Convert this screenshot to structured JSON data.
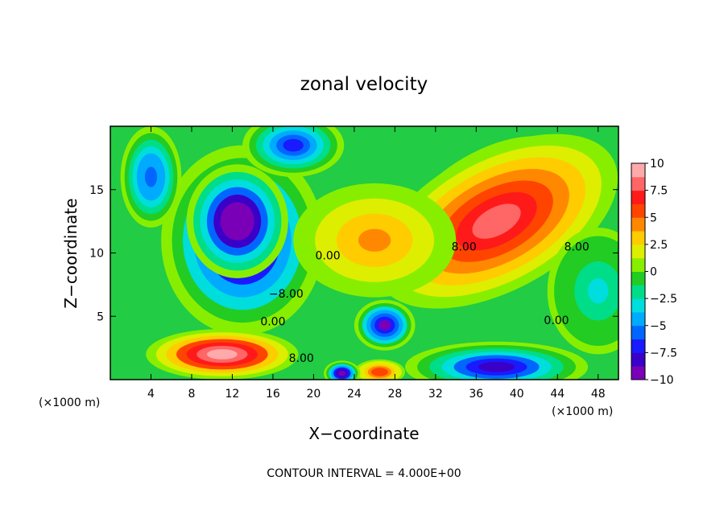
{
  "chart_data": {
    "type": "heatmap",
    "title": "zonal velocity",
    "xlabel": "X−coordinate",
    "ylabel": "Z−coordinate",
    "x_units_left": "(×1000 m)",
    "x_units_right": "(×1000 m)",
    "footer": "CONTOUR INTERVAL = 4.000E+00",
    "xlim": [
      0,
      50
    ],
    "ylim": [
      0,
      20
    ],
    "x_ticks": [
      4,
      8,
      12,
      16,
      20,
      24,
      28,
      32,
      36,
      40,
      44,
      48
    ],
    "x_tick_labels": [
      "4",
      "8",
      "12",
      "16",
      "20",
      "24",
      "28",
      "32",
      "36",
      "40",
      "44",
      "48"
    ],
    "y_ticks": [
      5,
      10,
      15
    ],
    "y_tick_labels": [
      "5",
      "10",
      "15"
    ],
    "colorbar": {
      "range": [
        -10,
        10
      ],
      "ticks": [
        10,
        7.5,
        5,
        2.5,
        0,
        -2.5,
        -5,
        -7.5,
        -10
      ],
      "tick_labels": [
        "10",
        "7.5",
        "5",
        "2.5",
        "0",
        "−2.5",
        "−5",
        "−7.5",
        "−10"
      ],
      "colors": [
        "#7a00b8",
        "#3a00c8",
        "#1a1aff",
        "#0066ff",
        "#00aaff",
        "#00dddd",
        "#00dd88",
        "#22cc22",
        "#88ee00",
        "#ddee00",
        "#ffcc00",
        "#ff8800",
        "#ff4400",
        "#ff1a1a",
        "#ff6666",
        "#ffaaaa"
      ]
    },
    "contour_labels": [
      {
        "text": "−8.00",
        "x": 17.3,
        "y": 6.8
      },
      {
        "text": "0.00",
        "x": 16.0,
        "y": 4.6
      },
      {
        "text": "0.00",
        "x": 21.4,
        "y": 9.8
      },
      {
        "text": "8.00",
        "x": 18.8,
        "y": 1.7
      },
      {
        "text": "8.00",
        "x": 34.8,
        "y": 10.5
      },
      {
        "text": "8.00",
        "x": 45.9,
        "y": 10.5
      },
      {
        "text": "0.00",
        "x": 43.9,
        "y": 4.7
      }
    ],
    "features": [
      {
        "value": -10,
        "cx": 13.0,
        "cy": 11.0,
        "rx": 8.0,
        "ry": 7.5
      },
      {
        "value": -12,
        "cx": 12.5,
        "cy": 12.5,
        "rx": 5.0,
        "ry": 4.5
      },
      {
        "value": -7,
        "cx": 18.0,
        "cy": 18.5,
        "rx": 5.0,
        "ry": 2.5
      },
      {
        "value": -8,
        "cx": 38.0,
        "cy": 1.0,
        "rx": 9.0,
        "ry": 2.0
      },
      {
        "value": -9,
        "cx": 27.0,
        "cy": 4.3,
        "rx": 3.0,
        "ry": 2.0
      },
      {
        "value": -6,
        "cx": 4.0,
        "cy": 16.0,
        "rx": 3.0,
        "ry": 4.0
      },
      {
        "value": 12,
        "cx": 37.0,
        "cy": 14.5,
        "rx": 9.0,
        "ry": 3.5,
        "angle": 30
      },
      {
        "value": 8,
        "cx": 38.0,
        "cy": 12.5,
        "rx": 13.0,
        "ry": 5.5,
        "angle": 28
      },
      {
        "value": 10,
        "cx": 11.0,
        "cy": 2.0,
        "rx": 7.5,
        "ry": 2.0
      },
      {
        "value": 6,
        "cx": 26.5,
        "cy": 0.6,
        "rx": 2.5,
        "ry": 1.0
      },
      {
        "value": -10,
        "cx": 22.8,
        "cy": 0.5,
        "rx": 1.8,
        "ry": 1.0
      },
      {
        "value": 4,
        "cx": 26.0,
        "cy": 11.0,
        "rx": 8.0,
        "ry": 4.5
      },
      {
        "value": -3,
        "cx": 48.0,
        "cy": 7.0,
        "rx": 5.0,
        "ry": 5.0
      }
    ]
  }
}
